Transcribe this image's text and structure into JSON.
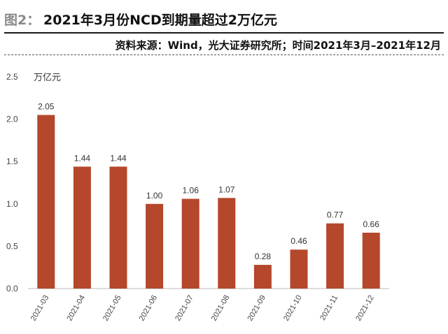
{
  "header": {
    "figure_prefix": "图2：",
    "title": "2021年3月份NCD到期量超过2万亿元"
  },
  "source_line": "资料来源：Wind，光大证券研究所；时间2021年3月–2021年12月",
  "chart_data": {
    "type": "bar",
    "unit_label": "万亿元",
    "categories": [
      "2021-03",
      "2021-04",
      "2021-05",
      "2021-06",
      "2021-07",
      "2021-08",
      "2021-09",
      "2021-10",
      "2021-11",
      "2021-12"
    ],
    "values": [
      2.05,
      1.44,
      1.44,
      1.0,
      1.06,
      1.07,
      0.28,
      0.46,
      0.77,
      0.66
    ],
    "data_labels": [
      "2.05",
      "1.44",
      "1.44",
      "1.00",
      "1.06",
      "1.07",
      "0.28",
      "0.46",
      "0.77",
      "0.66"
    ],
    "y_ticks": [
      "0.0",
      "0.5",
      "1.0",
      "1.5",
      "2.0",
      "2.5"
    ],
    "ylim": [
      0,
      2.5
    ],
    "grid": false,
    "bar_color": "#b5472c"
  }
}
